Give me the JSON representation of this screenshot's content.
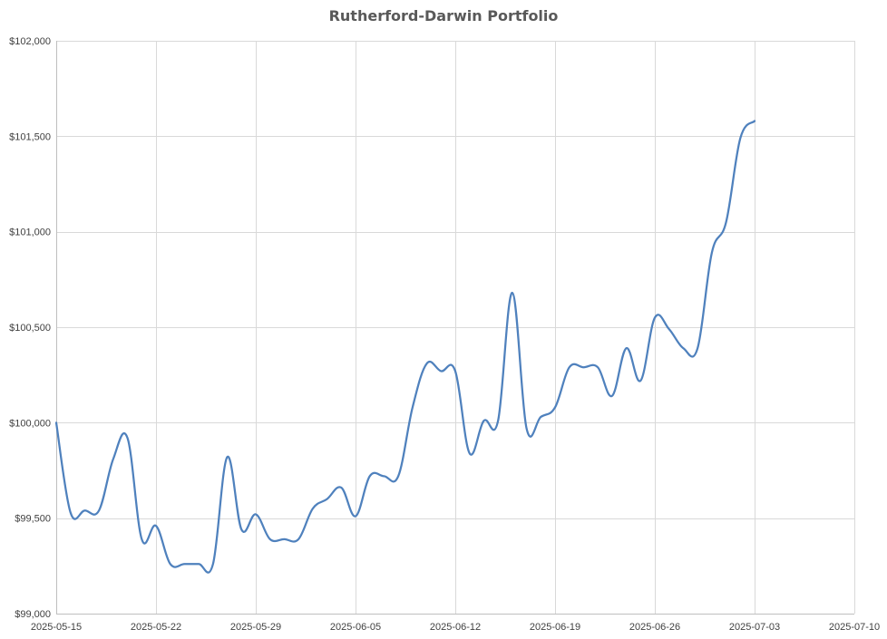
{
  "chart_data": {
    "type": "line",
    "title": "Rutherford-Darwin Portfolio",
    "xlabel": "",
    "ylabel": "",
    "grid": true,
    "legend": "none",
    "x_ticks": [
      "2025-05-15",
      "2025-05-22",
      "2025-05-29",
      "2025-06-05",
      "2025-06-12",
      "2025-06-19",
      "2025-06-26",
      "2025-07-03",
      "2025-07-10"
    ],
    "y_ticks": [
      "$99,000",
      "$99,500",
      "$100,000",
      "$100,500",
      "$101,000",
      "$101,500",
      "$102,000"
    ],
    "xlim": [
      "2025-05-15",
      "2025-07-10"
    ],
    "ylim": [
      99000,
      102000
    ],
    "series": [
      {
        "color": "#4f81bd",
        "x": [
          "2025-05-15",
          "2025-05-16",
          "2025-05-17",
          "2025-05-18",
          "2025-05-19",
          "2025-05-20",
          "2025-05-21",
          "2025-05-22",
          "2025-05-23",
          "2025-05-24",
          "2025-05-25",
          "2025-05-26",
          "2025-05-27",
          "2025-05-28",
          "2025-05-29",
          "2025-05-30",
          "2025-05-31",
          "2025-06-01",
          "2025-06-02",
          "2025-06-03",
          "2025-06-04",
          "2025-06-05",
          "2025-06-06",
          "2025-06-07",
          "2025-06-08",
          "2025-06-09",
          "2025-06-10",
          "2025-06-11",
          "2025-06-12",
          "2025-06-13",
          "2025-06-14",
          "2025-06-15",
          "2025-06-16",
          "2025-06-17",
          "2025-06-18",
          "2025-06-19",
          "2025-06-20",
          "2025-06-21",
          "2025-06-22",
          "2025-06-23",
          "2025-06-24",
          "2025-06-25",
          "2025-06-26",
          "2025-06-27",
          "2025-06-28",
          "2025-06-29",
          "2025-06-30",
          "2025-07-01",
          "2025-07-02",
          "2025-07-03"
        ],
        "values": [
          100000,
          99530,
          99540,
          99540,
          99810,
          99920,
          99390,
          99460,
          99260,
          99260,
          99260,
          99260,
          99820,
          99440,
          99520,
          99390,
          99390,
          99390,
          99550,
          99600,
          99660,
          99510,
          99720,
          99720,
          99720,
          100080,
          100310,
          100270,
          100270,
          99840,
          100010,
          100010,
          100680,
          99970,
          100030,
          100080,
          100290,
          100290,
          100290,
          100140,
          100390,
          100220,
          100550,
          100490,
          100390,
          100390,
          100890,
          101050,
          101490,
          101580
        ]
      }
    ]
  }
}
